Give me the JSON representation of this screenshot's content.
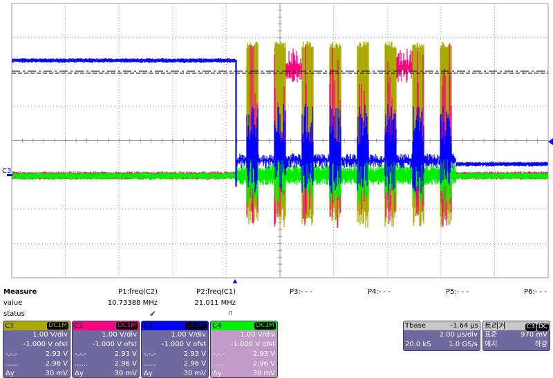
{
  "measure": {
    "title": "Measure",
    "row_labels": [
      "value",
      "status"
    ],
    "params": [
      {
        "name": "P1:freq(C2)",
        "value": "10.73388 MHz",
        "status": "check-icon"
      },
      {
        "name": "P2:freq(C1)",
        "value": "21.011 MHz",
        "status": "pulse-warning-icon"
      },
      {
        "name": "P3:- - -"
      },
      {
        "name": "P4:- - -"
      },
      {
        "name": "P5:- - -"
      },
      {
        "name": "P6:- - -"
      }
    ]
  },
  "channels": [
    {
      "name": "C1",
      "coupling": "DC1M",
      "color": "#aaaa00",
      "vdiv": "1.00 V/div",
      "offset": "-1.000 V ofst",
      "dash_label": "-.-.-",
      "dash_value": "2.93 V",
      "dot_label": "......",
      "dot_value": "2.96 V",
      "dy_label": "Δy",
      "dy_value": "30 mV"
    },
    {
      "name": "C2",
      "coupling": "DC1M",
      "color": "#ff0080",
      "vdiv": "1.00 V/div",
      "offset": "-1.000 V ofst",
      "dash_label": "-.-.-",
      "dash_value": "2.93 V",
      "dot_label": "......",
      "dot_value": "2.96 V",
      "dy_label": "Δy",
      "dy_value": "30 mV"
    },
    {
      "name": "C3",
      "coupling": "DC1M",
      "color": "#0000ff",
      "vdiv": "1.00 V/div",
      "offset": "-1.000 V ofst",
      "dash_label": "-.-.-",
      "dash_value": "2.93 V",
      "dot_label": "......",
      "dot_value": "2.96 V",
      "dy_label": "Δy",
      "dy_value": "30 mV"
    },
    {
      "name": "C4",
      "coupling": "DC1M",
      "color": "#00ee00",
      "vdiv": "1.00 V/div",
      "offset": "-1.000 V ofst",
      "dash_label": "-.-.-",
      "dash_value": "2.93 V",
      "dot_label": "......",
      "dot_value": "2.96 V",
      "dy_label": "Δy",
      "dy_value": "30 mV"
    }
  ],
  "timebase": {
    "label": "Tbase",
    "delay": "-1.64 µs",
    "tdiv": "2.00 µs/div",
    "samples": "20.0 kS",
    "rate": "1.0 GS/s"
  },
  "trigger": {
    "label": "트리거",
    "source": "C3",
    "coupling": "DC",
    "mode": "표준",
    "level": "970 mV",
    "type": "에지",
    "slope": "하강"
  },
  "trace_label": "C3"
}
